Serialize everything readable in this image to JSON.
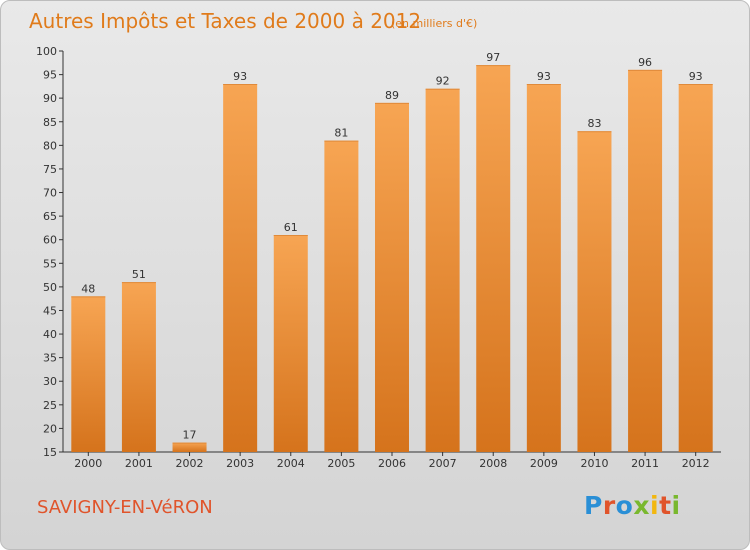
{
  "header": {
    "title": "Autres Impôts et Taxes de 2000 à 2012",
    "unit": "(en milliers d'€)"
  },
  "footer": {
    "commune": "SAVIGNY-EN-VéRON",
    "logo": "Proxiti"
  },
  "colors": {
    "accent": "#e07b1b",
    "commune": "#e0542b",
    "bar_top": "#f7a553",
    "bar_bottom": "#d5731c",
    "logo_letters": [
      "#2a8fd6",
      "#e0542b",
      "#2a8fd6",
      "#79b82e",
      "#f2b70f",
      "#e0542b",
      "#79b82e"
    ]
  },
  "chart_data": {
    "type": "bar",
    "title": "Autres Impôts et Taxes de 2000 à 2012",
    "xlabel": "",
    "ylabel": "",
    "categories": [
      "2000",
      "2001",
      "2002",
      "2003",
      "2004",
      "2005",
      "2006",
      "2007",
      "2008",
      "2009",
      "2010",
      "2011",
      "2012"
    ],
    "values": [
      48,
      51,
      17,
      93,
      61,
      81,
      89,
      92,
      97,
      93,
      83,
      96,
      93
    ],
    "ylim": [
      15,
      100
    ],
    "yticks": [
      15,
      20,
      25,
      30,
      35,
      40,
      45,
      50,
      55,
      60,
      65,
      70,
      75,
      80,
      85,
      90,
      95,
      100
    ],
    "grid": false,
    "data_labels": true
  }
}
